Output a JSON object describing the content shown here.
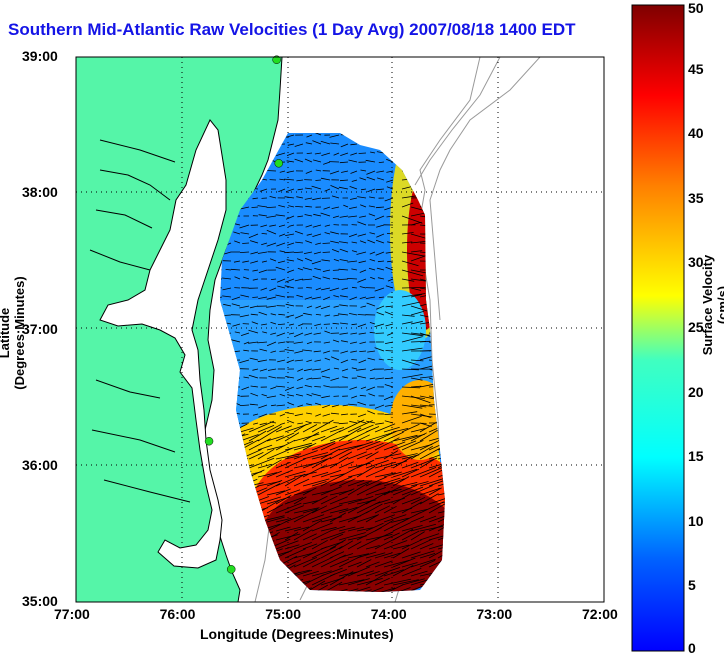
{
  "title": "Southern Mid-Atlantic Raw Velocities (1 Day Avg) 2007/08/18 1400 EDT",
  "xlabel": "Longitude (Degrees:Minutes)",
  "ylabel": "Latitude (Degrees:Minutes)",
  "colorbar_label": "Surface Velocity (cm/s)",
  "colors": {
    "land": "#55f5a8",
    "water": "#ffffff",
    "title": "#1414e6",
    "coast": "#000000",
    "bathymetry": "#9a9a9a",
    "station": "#22dd22"
  },
  "chart_data": {
    "type": "map",
    "x_ticks": [
      "77:00",
      "76:00",
      "75:00",
      "74:00",
      "73:00",
      "72:00"
    ],
    "y_ticks": [
      "39:00",
      "38:00",
      "37:00",
      "36:00",
      "35:00"
    ],
    "xlim": [
      -77,
      -72
    ],
    "ylim": [
      35,
      39
    ],
    "grid": true,
    "colorbar": {
      "ticks": [
        "50",
        "45",
        "40",
        "35",
        "30",
        "25",
        "20",
        "15",
        "10",
        "5",
        "0"
      ],
      "range": [
        0,
        50
      ],
      "colormap": "jet"
    },
    "stations": [
      {
        "lon": -75.1,
        "lat": 38.98
      },
      {
        "lon": -75.08,
        "lat": 38.22
      },
      {
        "lon": -75.74,
        "lat": 36.18
      },
      {
        "lon": -75.53,
        "lat": 35.24
      }
    ]
  }
}
